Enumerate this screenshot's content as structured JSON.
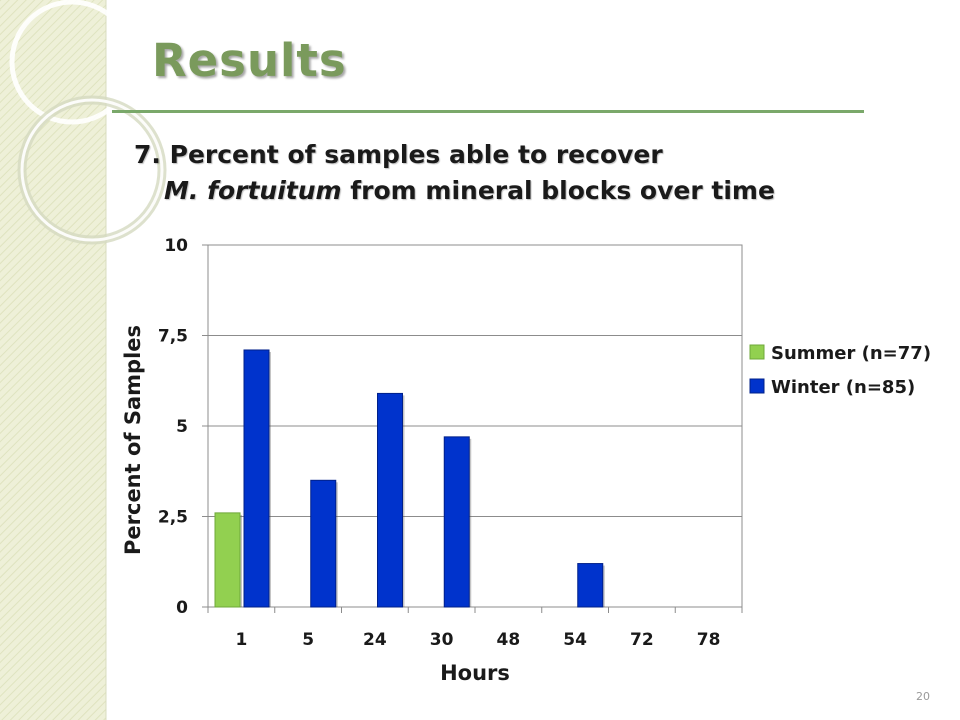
{
  "slide": {
    "title": "Results",
    "subtitle_number": "7.",
    "subtitle_line1": "Percent of samples able to recover",
    "subtitle_italic": "M. fortuitum",
    "subtitle_line2_rest": " from mineral blocks over time",
    "page_number": "20"
  },
  "colors": {
    "summer": "#92d050",
    "winter": "#0033cc",
    "accent": "#7aa86a"
  },
  "chart_data": {
    "type": "bar",
    "title": "",
    "xlabel": "Hours",
    "ylabel": "Percent of Samples",
    "categories": [
      "1",
      "5",
      "24",
      "30",
      "48",
      "54",
      "72",
      "78"
    ],
    "series": [
      {
        "name": "Summer (n=77)",
        "values": [
          2.6,
          0,
          0,
          0,
          0,
          0,
          0,
          0
        ]
      },
      {
        "name": "Winter (n=85)",
        "values": [
          7.1,
          3.5,
          5.9,
          4.7,
          0,
          1.2,
          0,
          0
        ]
      }
    ],
    "ylim": [
      0,
      10
    ],
    "yticks": [
      0,
      2.5,
      5,
      7.5,
      10
    ],
    "ytick_labels": [
      "0",
      "2,5",
      "5",
      "7,5",
      "10"
    ],
    "grid": true,
    "legend": "right"
  }
}
